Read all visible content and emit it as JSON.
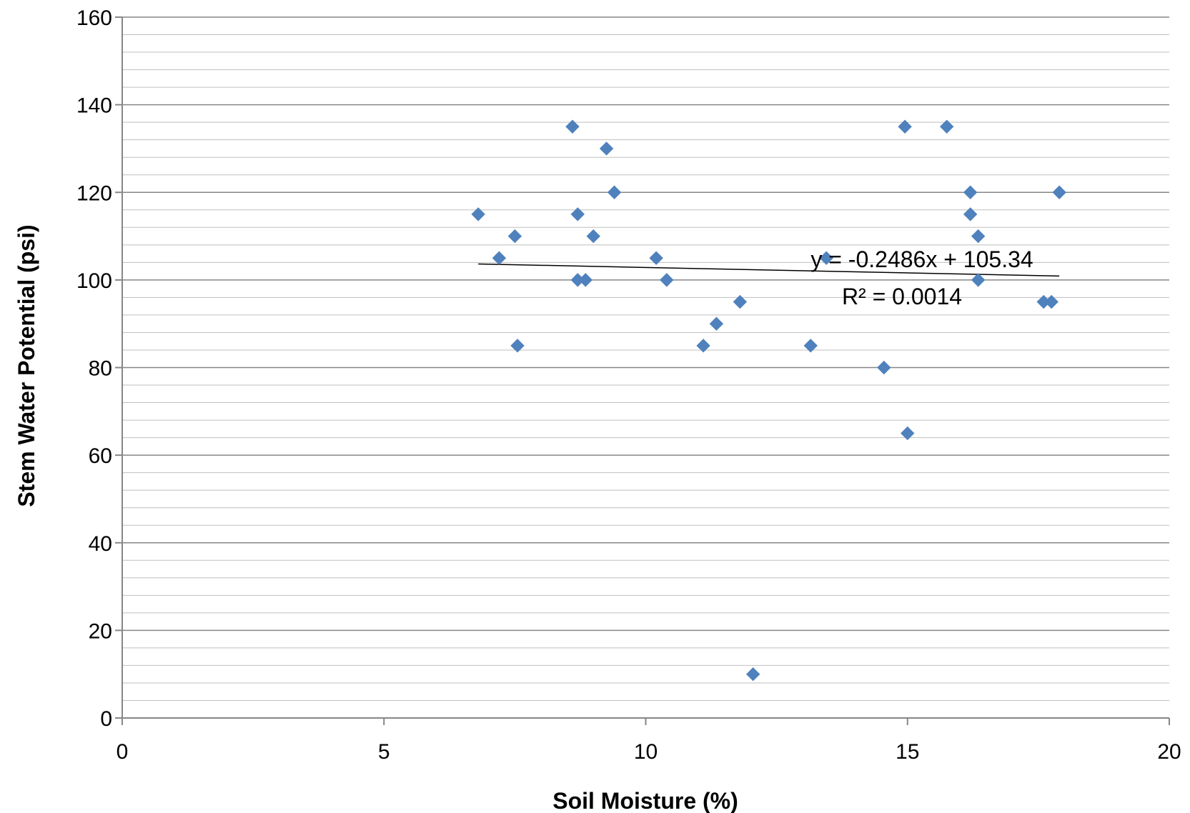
{
  "chart_data": {
    "type": "scatter",
    "title": "",
    "xlabel": "Soil Moisture (%)",
    "ylabel": "Stem Water Potential (psi)",
    "xlim": [
      0,
      20
    ],
    "ylim": [
      0,
      160
    ],
    "xticks": [
      0,
      5,
      10,
      15,
      20
    ],
    "yticks": [
      0,
      20,
      40,
      60,
      80,
      100,
      120,
      140,
      160
    ],
    "major_grid": true,
    "minor_grid": true,
    "marker": "diamond",
    "marker_color": "#4F81BD",
    "points": [
      {
        "x": 6.8,
        "y": 115
      },
      {
        "x": 7.2,
        "y": 105
      },
      {
        "x": 7.5,
        "y": 110
      },
      {
        "x": 7.55,
        "y": 85
      },
      {
        "x": 8.6,
        "y": 135
      },
      {
        "x": 8.7,
        "y": 115
      },
      {
        "x": 8.7,
        "y": 100
      },
      {
        "x": 8.85,
        "y": 100
      },
      {
        "x": 9.0,
        "y": 110
      },
      {
        "x": 9.25,
        "y": 130
      },
      {
        "x": 9.4,
        "y": 120
      },
      {
        "x": 10.2,
        "y": 105
      },
      {
        "x": 10.4,
        "y": 100
      },
      {
        "x": 11.1,
        "y": 85
      },
      {
        "x": 11.35,
        "y": 90
      },
      {
        "x": 11.8,
        "y": 95
      },
      {
        "x": 12.05,
        "y": 10
      },
      {
        "x": 13.15,
        "y": 85
      },
      {
        "x": 13.45,
        "y": 105
      },
      {
        "x": 14.55,
        "y": 80
      },
      {
        "x": 14.95,
        "y": 135
      },
      {
        "x": 15.0,
        "y": 65
      },
      {
        "x": 15.75,
        "y": 135
      },
      {
        "x": 16.2,
        "y": 120
      },
      {
        "x": 16.2,
        "y": 115
      },
      {
        "x": 16.35,
        "y": 110
      },
      {
        "x": 16.35,
        "y": 100
      },
      {
        "x": 17.6,
        "y": 95
      },
      {
        "x": 17.75,
        "y": 95
      },
      {
        "x": 17.9,
        "y": 120
      }
    ],
    "trendline": {
      "slope": -0.2486,
      "intercept": 105.34,
      "x_start": 6.8,
      "x_end": 17.9,
      "equation": "y = -0.2486x + 105.34",
      "r_squared": "R² = 0.0014"
    }
  }
}
